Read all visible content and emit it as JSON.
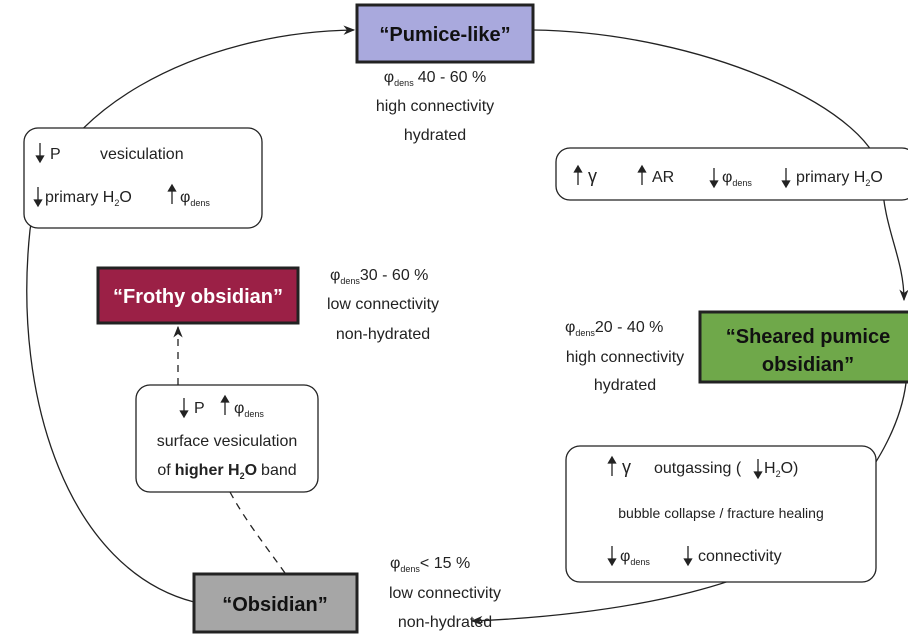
{
  "states": {
    "pumice_like": {
      "label": "“Pumice-like”",
      "porosity": {
        "symbol": "φ",
        "subscript": "dens",
        "range": "40 - 60 %"
      },
      "connectivity": "high connectivity",
      "hydration": "hydrated"
    },
    "sheared_pumice_obsidian": {
      "label": [
        "“Sheared pumice",
        "obsidian”"
      ],
      "porosity": {
        "symbol": "φ",
        "subscript": "dens",
        "range": "20 - 40 %"
      },
      "connectivity": "high connectivity",
      "hydration": "hydrated"
    },
    "frothy_obsidian": {
      "label": "“Frothy obsidian”",
      "porosity": {
        "symbol": "φ",
        "subscript": "dens",
        "range": "30 - 60 %"
      },
      "connectivity": "low connectivity",
      "hydration": "non-hydrated"
    },
    "obsidian": {
      "label": "“Obsidian”",
      "porosity": {
        "symbol": "φ",
        "subscript": "dens",
        "range": "< 15 %"
      },
      "connectivity": "low connectivity",
      "hydration": "non-hydrated"
    }
  },
  "processes": {
    "vesiculation": {
      "pressure": "P",
      "action": "vesiculation",
      "water": {
        "text": "primary H",
        "subscript": "2",
        "tail": "O"
      },
      "porosity": {
        "symbol": "φ",
        "subscript": "dens"
      }
    },
    "shearing": {
      "strain": "γ",
      "aspect_ratio": "AR",
      "porosity": {
        "symbol": "φ",
        "subscript": "dens"
      },
      "water": {
        "text": "primary H",
        "subscript": "2",
        "tail": "O"
      }
    },
    "surface_vesiculation": {
      "pressure": "P",
      "porosity": {
        "symbol": "φ",
        "subscript": "dens"
      },
      "line1": "surface vesiculation",
      "line2": {
        "prefix": "of",
        "emphasis": "higher H",
        "subscript": "2",
        "emphasis_tail": "O",
        "suffix": "band"
      }
    },
    "outgassing": {
      "strain": "γ",
      "action": "outgassing (",
      "water": {
        "text": "H",
        "subscript": "2",
        "tail": "O)"
      },
      "line2": "bubble collapse / fracture healing",
      "porosity": {
        "symbol": "φ",
        "subscript": "dens"
      },
      "connectivity": "connectivity"
    }
  }
}
